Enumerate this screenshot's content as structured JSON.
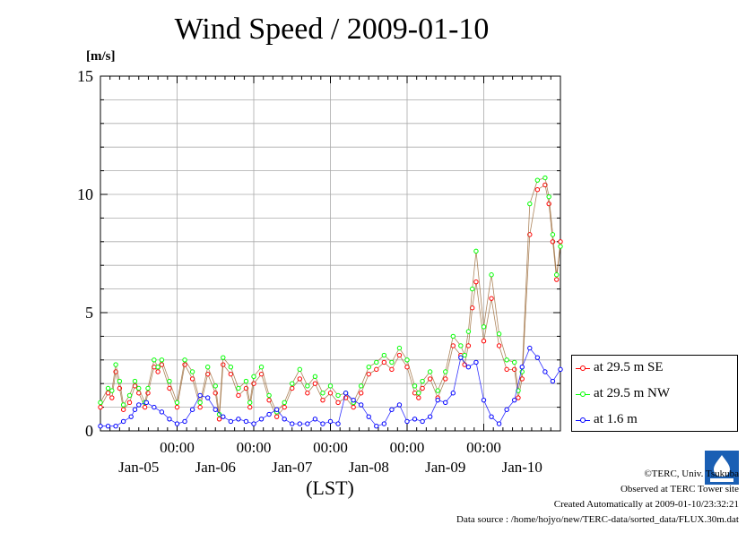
{
  "title": "Wind Speed / 2009-01-10",
  "footer": {
    "copyright": "©TERC, Univ. Tsukuba",
    "observed": "Observed at TERC Tower site",
    "created": "Created Automatically at 2009-01-10/23:32:21",
    "source": "Data source : /home/hojyo/new/TERC-data/sorted_data/FLUX.30m.dat"
  },
  "colors": {
    "se": "#ff0000",
    "nw": "#00ff00",
    "low": "#0000ff",
    "connector": "#996633",
    "grid": "#aaaaaa"
  },
  "chart_data": {
    "type": "line",
    "title": "Wind Speed / 2009-01-10",
    "xlabel": "(LST)",
    "ylabel": "[m/s]",
    "ylim": [
      0,
      15
    ],
    "yticks": [
      0,
      5,
      10,
      15
    ],
    "xlim_days": [
      0,
      6
    ],
    "day_labels": [
      "Jan-05",
      "Jan-06",
      "Jan-07",
      "Jan-08",
      "Jan-09",
      "Jan-10"
    ],
    "midnight_labels": [
      "00:00",
      "00:00",
      "00:00",
      "00:00",
      "00:00"
    ],
    "grid": true,
    "legend_position": "right",
    "series": [
      {
        "name": "at 29.5 m SE",
        "color": "#ff0000",
        "x": [
          0.0,
          0.1,
          0.15,
          0.2,
          0.25,
          0.3,
          0.38,
          0.45,
          0.5,
          0.58,
          0.62,
          0.7,
          0.75,
          0.8,
          0.9,
          1.0,
          1.1,
          1.2,
          1.3,
          1.4,
          1.5,
          1.55,
          1.6,
          1.7,
          1.8,
          1.9,
          1.95,
          2.0,
          2.1,
          2.2,
          2.3,
          2.4,
          2.5,
          2.6,
          2.7,
          2.8,
          2.9,
          3.0,
          3.1,
          3.2,
          3.3,
          3.4,
          3.5,
          3.6,
          3.7,
          3.8,
          3.9,
          4.0,
          4.1,
          4.15,
          4.2,
          4.3,
          4.4,
          4.5,
          4.6,
          4.7,
          4.75,
          4.8,
          4.85,
          4.9,
          5.0,
          5.1,
          5.2,
          5.3,
          5.4,
          5.45,
          5.5,
          5.6,
          5.7,
          5.8,
          5.85,
          5.9,
          5.95,
          6.0
        ],
        "y": [
          1.0,
          1.6,
          1.4,
          2.5,
          1.8,
          0.9,
          1.2,
          1.9,
          1.6,
          1.0,
          1.6,
          2.7,
          2.5,
          2.8,
          1.8,
          1.0,
          2.8,
          2.2,
          1.0,
          2.4,
          1.6,
          0.5,
          2.8,
          2.4,
          1.5,
          1.8,
          1.0,
          2.0,
          2.4,
          1.3,
          0.6,
          1.0,
          1.8,
          2.2,
          1.6,
          2.0,
          1.3,
          1.6,
          1.2,
          1.4,
          1.0,
          1.6,
          2.4,
          2.6,
          2.9,
          2.6,
          3.2,
          2.7,
          1.6,
          1.4,
          1.8,
          2.2,
          1.4,
          2.2,
          3.6,
          3.2,
          2.8,
          3.6,
          5.2,
          6.3,
          3.8,
          5.6,
          3.6,
          2.6,
          2.6,
          1.4,
          2.2,
          8.3,
          10.2,
          10.4,
          9.6,
          8.0,
          6.4,
          8.0
        ]
      },
      {
        "name": "at 29.5 m NW",
        "color": "#00ff00",
        "x": [
          0.0,
          0.1,
          0.15,
          0.2,
          0.25,
          0.3,
          0.38,
          0.45,
          0.5,
          0.58,
          0.62,
          0.7,
          0.75,
          0.8,
          0.9,
          1.0,
          1.1,
          1.2,
          1.3,
          1.4,
          1.5,
          1.55,
          1.6,
          1.7,
          1.8,
          1.9,
          1.95,
          2.0,
          2.1,
          2.2,
          2.3,
          2.4,
          2.5,
          2.6,
          2.7,
          2.8,
          2.9,
          3.0,
          3.1,
          3.2,
          3.3,
          3.4,
          3.5,
          3.6,
          3.7,
          3.8,
          3.9,
          4.0,
          4.1,
          4.15,
          4.2,
          4.3,
          4.4,
          4.5,
          4.6,
          4.7,
          4.75,
          4.8,
          4.85,
          4.9,
          5.0,
          5.1,
          5.2,
          5.3,
          5.4,
          5.45,
          5.5,
          5.6,
          5.7,
          5.8,
          5.85,
          5.9,
          5.95,
          6.0
        ],
        "y": [
          1.2,
          1.8,
          1.7,
          2.8,
          2.1,
          1.1,
          1.5,
          2.1,
          1.8,
          1.2,
          1.8,
          3.0,
          2.7,
          3.0,
          2.1,
          1.2,
          3.0,
          2.5,
          1.2,
          2.7,
          1.9,
          0.7,
          3.1,
          2.7,
          1.8,
          2.1,
          1.2,
          2.3,
          2.7,
          1.5,
          0.8,
          1.2,
          2.0,
          2.6,
          1.9,
          2.3,
          1.6,
          1.9,
          1.5,
          1.6,
          1.2,
          1.9,
          2.7,
          2.9,
          3.2,
          2.9,
          3.5,
          3.0,
          1.9,
          1.6,
          2.1,
          2.5,
          1.7,
          2.5,
          4.0,
          3.6,
          3.2,
          4.2,
          6.0,
          7.6,
          4.4,
          6.6,
          4.1,
          3.0,
          2.9,
          1.7,
          2.5,
          9.6,
          10.6,
          10.7,
          9.9,
          8.3,
          6.6,
          7.8
        ]
      },
      {
        "name": "at 1.6 m",
        "color": "#0000ff",
        "x": [
          0.0,
          0.1,
          0.2,
          0.3,
          0.4,
          0.45,
          0.5,
          0.6,
          0.7,
          0.8,
          0.9,
          1.0,
          1.1,
          1.2,
          1.3,
          1.4,
          1.5,
          1.6,
          1.7,
          1.8,
          1.9,
          2.0,
          2.1,
          2.2,
          2.3,
          2.4,
          2.5,
          2.6,
          2.7,
          2.8,
          2.9,
          3.0,
          3.1,
          3.2,
          3.3,
          3.4,
          3.5,
          3.6,
          3.7,
          3.8,
          3.9,
          4.0,
          4.1,
          4.2,
          4.3,
          4.4,
          4.5,
          4.6,
          4.7,
          4.8,
          4.9,
          5.0,
          5.1,
          5.2,
          5.3,
          5.4,
          5.5,
          5.6,
          5.7,
          5.8,
          5.9,
          6.0
        ],
        "y": [
          0.2,
          0.2,
          0.2,
          0.4,
          0.6,
          0.9,
          1.1,
          1.2,
          1.0,
          0.8,
          0.5,
          0.3,
          0.4,
          0.9,
          1.5,
          1.4,
          0.9,
          0.6,
          0.4,
          0.5,
          0.4,
          0.3,
          0.5,
          0.7,
          0.9,
          0.5,
          0.3,
          0.3,
          0.3,
          0.5,
          0.3,
          0.4,
          0.3,
          1.6,
          1.3,
          1.1,
          0.6,
          0.2,
          0.3,
          0.9,
          1.1,
          0.4,
          0.5,
          0.4,
          0.6,
          1.3,
          1.2,
          1.6,
          3.1,
          2.7,
          2.9,
          1.3,
          0.6,
          0.3,
          0.9,
          1.3,
          2.7,
          3.5,
          3.1,
          2.5,
          2.1,
          2.6
        ]
      }
    ]
  }
}
